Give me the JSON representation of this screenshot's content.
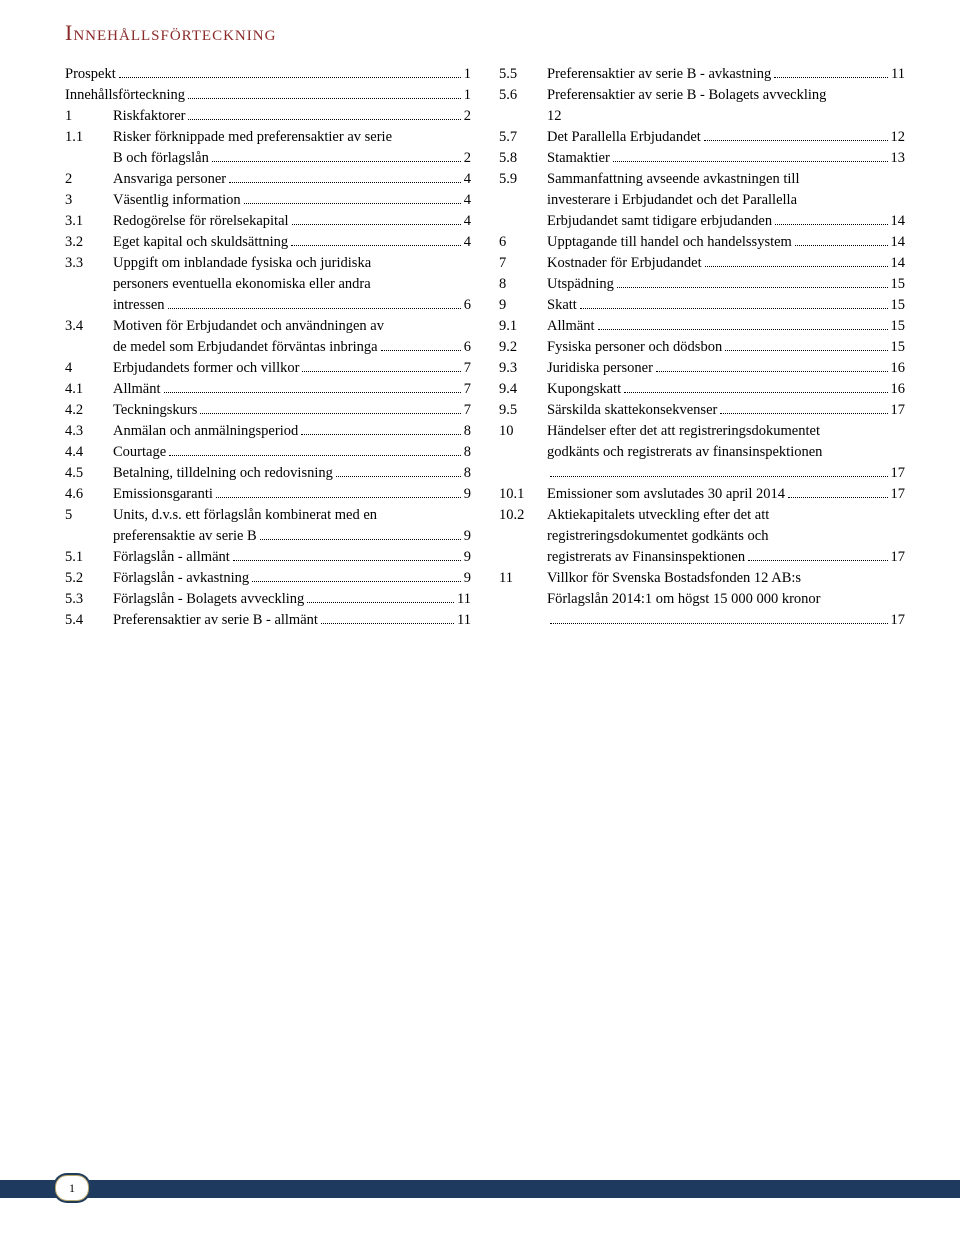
{
  "title": "Innehållsförteckning",
  "page_number": "1",
  "colors": {
    "title": "#8b2a2a",
    "text": "#000000",
    "band": "#1e3a5f",
    "badge_border": "#b9a96b",
    "background": "#ffffff"
  },
  "left_entries": [
    {
      "num": "",
      "lines": [
        "Prospekt"
      ],
      "page": "1",
      "no_indent": true
    },
    {
      "num": "",
      "lines": [
        "Innehållsförteckning"
      ],
      "page": "1",
      "no_indent": true
    },
    {
      "num": "1",
      "lines": [
        "Riskfaktorer"
      ],
      "page": "2"
    },
    {
      "num": "1.1",
      "lines": [
        "Risker förknippade med preferensaktier av serie",
        "B och förlagslån"
      ],
      "page": "2"
    },
    {
      "num": "2",
      "lines": [
        "Ansvariga personer"
      ],
      "page": "4"
    },
    {
      "num": "3",
      "lines": [
        "Väsentlig information"
      ],
      "page": "4"
    },
    {
      "num": "3.1",
      "lines": [
        "Redogörelse för rörelsekapital"
      ],
      "page": "4"
    },
    {
      "num": "3.2",
      "lines": [
        "Eget kapital och skuldsättning"
      ],
      "page": "4"
    },
    {
      "num": "3.3",
      "lines": [
        "Uppgift om inblandade fysiska och juridiska",
        "personers eventuella ekonomiska eller andra",
        "intressen"
      ],
      "page": "6"
    },
    {
      "num": "3.4",
      "lines": [
        "Motiven för Erbjudandet och användningen av",
        "de medel som Erbjudandet förväntas inbringa"
      ],
      "page": "6"
    },
    {
      "num": "4",
      "lines": [
        "Erbjudandets former och villkor"
      ],
      "page": "7"
    },
    {
      "num": "4.1",
      "lines": [
        "Allmänt"
      ],
      "page": "7"
    },
    {
      "num": "4.2",
      "lines": [
        "Teckningskurs"
      ],
      "page": "7"
    },
    {
      "num": "4.3",
      "lines": [
        "Anmälan och anmälningsperiod"
      ],
      "page": "8"
    },
    {
      "num": "4.4",
      "lines": [
        "Courtage"
      ],
      "page": "8"
    },
    {
      "num": "4.5",
      "lines": [
        "Betalning, tilldelning och redovisning"
      ],
      "page": "8"
    },
    {
      "num": "4.6",
      "lines": [
        "Emissionsgaranti"
      ],
      "page": "9"
    },
    {
      "num": "5",
      "lines": [
        "Units, d.v.s. ett förlagslån kombinerat med en",
        "preferensaktie av serie B"
      ],
      "page": "9"
    },
    {
      "num": "5.1",
      "lines": [
        "Förlagslån - allmänt"
      ],
      "page": "9"
    },
    {
      "num": "5.2",
      "lines": [
        "Förlagslån - avkastning"
      ],
      "page": "9"
    },
    {
      "num": "5.3",
      "lines": [
        "Förlagslån - Bolagets avveckling"
      ],
      "page": "11"
    },
    {
      "num": "5.4",
      "lines": [
        "Preferensaktier av serie B - allmänt"
      ],
      "page": "11"
    }
  ],
  "right_entries": [
    {
      "num": "5.5",
      "lines": [
        "Preferensaktier av serie B - avkastning"
      ],
      "page": "11"
    },
    {
      "num": "5.6",
      "lines": [
        "Preferensaktier av serie B - Bolagets avveckling",
        "12"
      ],
      "page": "",
      "no_dots_last": true
    },
    {
      "num": "5.7",
      "lines": [
        "Det Parallella Erbjudandet"
      ],
      "page": "12"
    },
    {
      "num": "5.8",
      "lines": [
        "Stamaktier"
      ],
      "page": "13"
    },
    {
      "num": "5.9",
      "lines": [
        "Sammanfattning avseende avkastningen till",
        "investerare i Erbjudandet och det Parallella",
        "Erbjudandet samt tidigare erbjudanden"
      ],
      "page": "14"
    },
    {
      "num": "6",
      "lines": [
        "Upptagande till handel och handelssystem"
      ],
      "page": "14"
    },
    {
      "num": "7",
      "lines": [
        "Kostnader för Erbjudandet"
      ],
      "page": "14"
    },
    {
      "num": "8",
      "lines": [
        "Utspädning"
      ],
      "page": "15"
    },
    {
      "num": "9",
      "lines": [
        "Skatt"
      ],
      "page": "15"
    },
    {
      "num": "9.1",
      "lines": [
        "Allmänt"
      ],
      "page": "15"
    },
    {
      "num": "9.2",
      "lines": [
        "Fysiska personer och dödsbon"
      ],
      "page": "15"
    },
    {
      "num": "9.3",
      "lines": [
        "Juridiska personer"
      ],
      "page": "16"
    },
    {
      "num": "9.4",
      "lines": [
        "Kupongskatt"
      ],
      "page": "16"
    },
    {
      "num": "9.5",
      "lines": [
        "Särskilda skattekonsekvenser"
      ],
      "page": "17"
    },
    {
      "num": "10",
      "lines": [
        "Händelser efter det att registreringsdokumentet",
        "godkänts och registrerats av finansinspektionen",
        ""
      ],
      "page": "17"
    },
    {
      "num": "10.1",
      "lines": [
        "Emissioner som avslutades 30 april 2014"
      ],
      "page": "17"
    },
    {
      "num": "10.2",
      "lines": [
        "Aktiekapitalets utveckling efter det att",
        "registreringsdokumentet godkänts och",
        "registrerats av Finansinspektionen"
      ],
      "page": "17"
    },
    {
      "num": "11",
      "lines": [
        "Villkor för Svenska Bostadsfonden 12 AB:s",
        "Förlagslån 2014:1 om högst 15 000 000 kronor",
        ""
      ],
      "page": "17"
    }
  ]
}
